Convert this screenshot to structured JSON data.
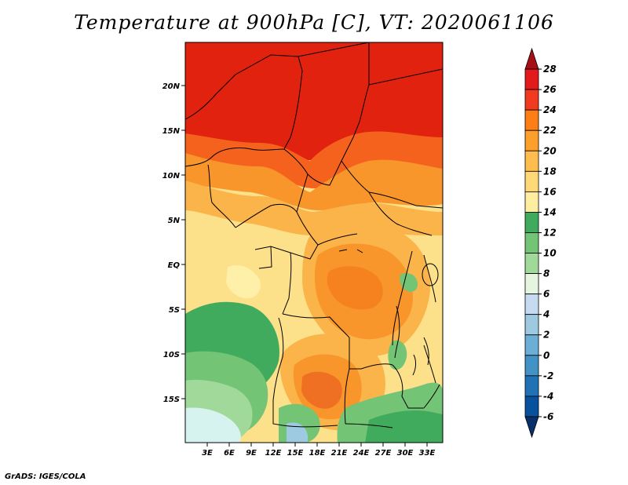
{
  "title": "Temperature at 900hPa [C], VT: 2020061106",
  "credit": "GrADS: IGES/COLA",
  "axes": {
    "lat_labels": [
      "20N",
      "15N",
      "10N",
      "5N",
      "EQ",
      "5S",
      "10S",
      "15S"
    ],
    "lon_labels": [
      "3E",
      "6E",
      "9E",
      "12E",
      "15E",
      "18E",
      "21E",
      "24E",
      "27E",
      "30E",
      "33E"
    ]
  },
  "colorbar": {
    "labels": [
      "28",
      "26",
      "24",
      "22",
      "20",
      "18",
      "16",
      "14",
      "12",
      "10",
      "8",
      "6",
      "4",
      "2",
      "0",
      "-2",
      "-4",
      "-6"
    ],
    "colors": [
      "#a50f15",
      "#e31a1c",
      "#f03b20",
      "#fd7e14",
      "#fd9f2a",
      "#febd4c",
      "#fed976",
      "#ffeda0",
      "#41ab5d",
      "#74c476",
      "#a1d99b",
      "#e5f5e0",
      "#c6dbef",
      "#9ecae1",
      "#6baed6",
      "#4292c6",
      "#2171b5",
      "#08519c",
      "#08306b"
    ]
  }
}
